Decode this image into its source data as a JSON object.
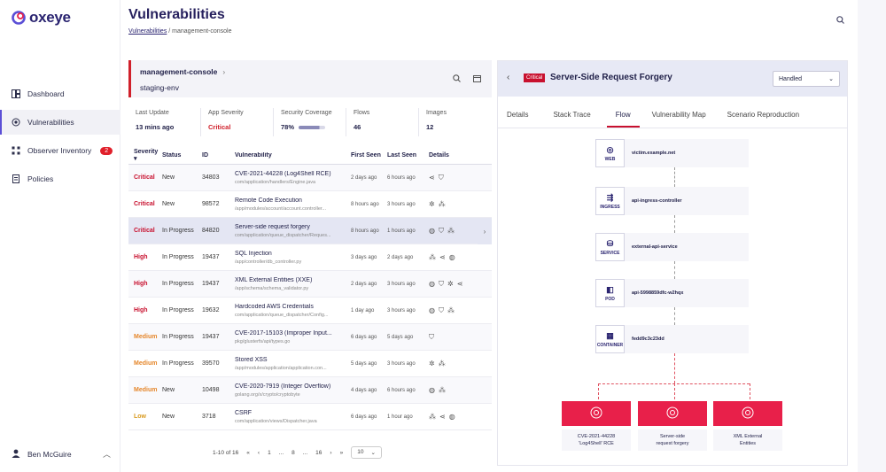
{
  "brand": {
    "name": "oxeye"
  },
  "nav": [
    {
      "label": "Dashboard",
      "icon": "dashboard-icon"
    },
    {
      "label": "Vulnerabilities",
      "icon": "vulnerabilities-icon"
    },
    {
      "label": "Observer Inventory",
      "icon": "inventory-icon",
      "badge": "2"
    },
    {
      "label": "Policies",
      "icon": "policies-icon"
    }
  ],
  "user": {
    "name": "Ben McGuire"
  },
  "header": {
    "title": "Vulnerabilities",
    "breadcrumb_link": "Vulnerabilities",
    "breadcrumb_current": "management-console"
  },
  "env": {
    "name": "management-console",
    "sub": "staging-env"
  },
  "stats": [
    {
      "label": "Last Update",
      "value": "13 mins ago"
    },
    {
      "label": "App Severity",
      "value": "Critical"
    },
    {
      "label": "Security Coverage",
      "value": "78%",
      "fraction": 0.78
    },
    {
      "label": "Flows",
      "value": "46"
    },
    {
      "label": "Images",
      "value": "12"
    }
  ],
  "table": {
    "headers": {
      "severity": "Severity",
      "status": "Status",
      "id": "ID",
      "vulnerability": "Vulnerability",
      "first_seen": "First Seen",
      "last_seen": "Last Seen",
      "details": "Details"
    },
    "rows": [
      {
        "severity": "Critical",
        "status": "New",
        "id": "34803",
        "title": "CVE-2021-44228 (Log4Shell RCE)",
        "path": "com/application/handlers/Engine.java",
        "first": "2 days ago",
        "last": "6 hours ago"
      },
      {
        "severity": "Critical",
        "status": "New",
        "id": "98572",
        "title": "Remote Code Execution",
        "path": "/app/modules/account/account.controller...",
        "first": "8 hours ago",
        "last": "3 hours ago"
      },
      {
        "severity": "Critical",
        "status": "In Progress",
        "id": "84820",
        "title": "Server-side request forgery",
        "path": "com/application/queue_dispatcher/Reques...",
        "first": "8 hours ago",
        "last": "1 hours ago"
      },
      {
        "severity": "High",
        "status": "In Progress",
        "id": "19437",
        "title": "SQL Injection",
        "path": "/app/controller/db_controller.py",
        "first": "3 days ago",
        "last": "2 days ago"
      },
      {
        "severity": "High",
        "status": "In Progress",
        "id": "19437",
        "title": "XML External Entities (XXE)",
        "path": "/app/schema/schema_validator.py",
        "first": "2 days ago",
        "last": "3 hours ago"
      },
      {
        "severity": "High",
        "status": "In Progress",
        "id": "19632",
        "title": "Hardcoded AWS Credentials",
        "path": "com/application/queue_dispatcher/Config...",
        "first": "1 day ago",
        "last": "3 hours ago"
      },
      {
        "severity": "Medium",
        "status": "In Progress",
        "id": "19437",
        "title": "CVE-2017-15103 (Improper Input...",
        "path": "pkg/glusterfs/api/types.go",
        "first": "6 days ago",
        "last": "5 days ago"
      },
      {
        "severity": "Medium",
        "status": "In Progress",
        "id": "39570",
        "title": "Stored XSS",
        "path": "/app/modules/application/application.con...",
        "first": "5 days ago",
        "last": "3 hours ago"
      },
      {
        "severity": "Medium",
        "status": "New",
        "id": "10498",
        "title": "CVE-2020-7919 (Integer Overflow)",
        "path": "golang.org/x/crypto/cryptobyte",
        "first": "4 days ago",
        "last": "6 hours ago"
      },
      {
        "severity": "Low",
        "status": "New",
        "id": "3718",
        "title": "CSRF",
        "path": "com/application/views/Dispatcher.java",
        "first": "6 days ago",
        "last": "1 hour ago"
      }
    ]
  },
  "pager": {
    "range": "1-10 of 16",
    "p1": "1",
    "ellipsis": "...",
    "p8": "8",
    "p16": "16",
    "per_page": "10"
  },
  "detail": {
    "severity": "Critical",
    "title": "Server-Side Request Forgery",
    "status_select": "Handled",
    "tabs": [
      "Details",
      "Stack Trace",
      "Flow",
      "Vulnerability Map",
      "Scenario Reproduction"
    ],
    "nodes": [
      {
        "type": "WEB",
        "label": "victim.example.net"
      },
      {
        "type": "INGRESS",
        "label": "api-ingress-controller"
      },
      {
        "type": "SERVICE",
        "label": "external-api-service"
      },
      {
        "type": "POD",
        "label": "api-5998859dfc-w2hqx"
      },
      {
        "type": "CONTAINER",
        "label": "fedd9c3c23dd"
      }
    ],
    "targets": [
      {
        "label1": "CVE-2021-44228",
        "label2": "'Log4Shell' RCE"
      },
      {
        "label1": "Server-side",
        "label2": "request forgery"
      },
      {
        "label1": "XML External",
        "label2": "Entities"
      }
    ]
  },
  "colors": {
    "accent": "#c8102e",
    "brand": "#2a2470",
    "highlight": "#e8204a"
  }
}
